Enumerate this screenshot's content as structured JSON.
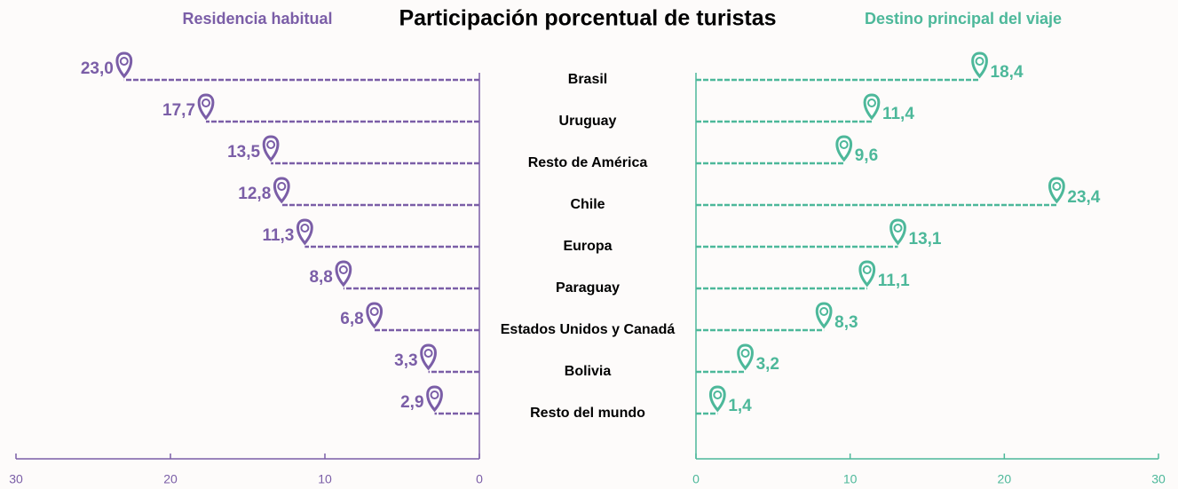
{
  "chart_data": {
    "type": "butterfly-lollipop",
    "title": "Participación porcentual de turistas",
    "categories": [
      "Brasil",
      "Uruguay",
      "Resto de América",
      "Chile",
      "Europa",
      "Paraguay",
      "Estados Unidos y Canadá",
      "Bolivia",
      "Resto del mundo"
    ],
    "series": [
      {
        "name": "Residencia habitual",
        "color": "#7b5ea7",
        "side": "left",
        "values": [
          23.0,
          17.7,
          13.5,
          12.8,
          11.3,
          8.8,
          6.8,
          3.3,
          2.9
        ],
        "value_labels": [
          "23,0",
          "17,7",
          "13,5",
          "12,8",
          "11,3",
          "8,8",
          "6,8",
          "3,3",
          "2,9"
        ],
        "xlim": [
          30,
          0
        ],
        "xticks": [
          30,
          20,
          10,
          0
        ]
      },
      {
        "name": "Destino principal del viaje",
        "color": "#4db89a",
        "side": "right",
        "values": [
          18.4,
          11.4,
          9.6,
          23.4,
          13.1,
          11.1,
          8.3,
          3.2,
          1.4
        ],
        "value_labels": [
          "18,4",
          "11,4",
          "9,6",
          "23,4",
          "13,1",
          "11,1",
          "8,3",
          "3,2",
          "1,4"
        ],
        "xlim": [
          0,
          30
        ],
        "xticks": [
          0,
          10,
          20,
          30
        ]
      }
    ]
  }
}
